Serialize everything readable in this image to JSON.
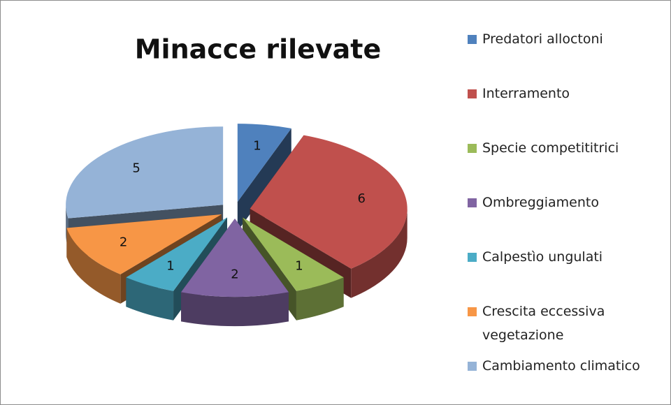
{
  "chart_data": {
    "type": "pie",
    "title": "Minacce rilevate",
    "categories": [
      "Predatori alloctoni",
      "Interramento",
      "Specie competititrici",
      "Ombreggiamento",
      "Calpestìo ungulati",
      "Crescita eccessiva vegetazione",
      "Cambiamento climatico"
    ],
    "values": [
      1,
      6,
      1,
      2,
      1,
      2,
      5
    ],
    "colors": [
      "#4f81bd",
      "#c0504d",
      "#9bbb59",
      "#8064a2",
      "#4bacc6",
      "#f79646",
      "#95b3d7"
    ],
    "legend": "right"
  }
}
